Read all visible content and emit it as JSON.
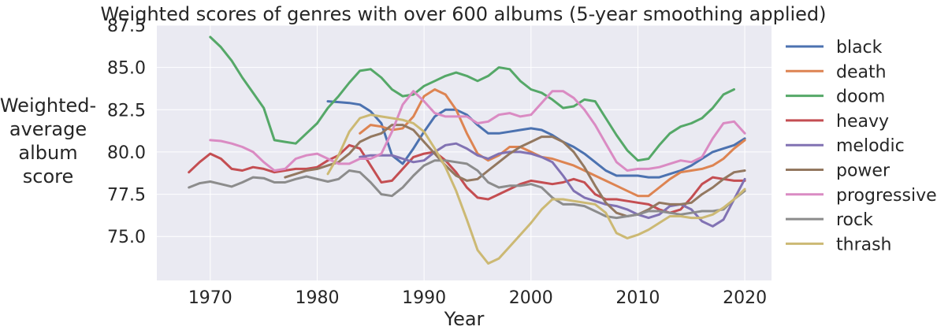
{
  "chart_data": {
    "type": "line",
    "title": "Weighted scores of genres with over 600 albums (5-year smoothing applied)",
    "xlabel": "Year",
    "ylabel": "Weighted-\naverage\nalbum\nscore",
    "xlim": [
      1965,
      2022.5
    ],
    "ylim": [
      72.4,
      87.5
    ],
    "xticks": [
      1970,
      1980,
      1990,
      2000,
      2010,
      2020
    ],
    "yticks": [
      75.0,
      77.5,
      80.0,
      82.5,
      85.0,
      87.5
    ],
    "xtick_labels": [
      "1970",
      "1980",
      "1990",
      "2000",
      "2010",
      "2020"
    ],
    "ytick_labels": [
      "75.0",
      "77.5",
      "80.0",
      "82.5",
      "85.0",
      "87.5"
    ],
    "grid": true,
    "legend_position": "outside-right",
    "series": [
      {
        "name": "black",
        "color": "#4c72b0",
        "x": [
          1981,
          1982,
          1983,
          1984,
          1985,
          1986,
          1987,
          1988,
          1989,
          1990,
          1991,
          1992,
          1993,
          1994,
          1995,
          1996,
          1997,
          1998,
          1999,
          2000,
          2001,
          2002,
          2003,
          2004,
          2005,
          2006,
          2007,
          2008,
          2009,
          2010,
          2011,
          2012,
          2013,
          2014,
          2015,
          2016,
          2017,
          2018,
          2019,
          2020
        ],
        "y": [
          83.0,
          82.95,
          82.9,
          82.8,
          82.4,
          81.7,
          79.8,
          79.3,
          80.2,
          81.2,
          82.1,
          82.5,
          82.5,
          82.2,
          81.6,
          81.1,
          81.1,
          81.2,
          81.3,
          81.4,
          81.3,
          81.0,
          80.6,
          80.3,
          79.9,
          79.4,
          78.9,
          78.6,
          78.6,
          78.6,
          78.5,
          78.5,
          78.7,
          78.9,
          79.2,
          79.6,
          80.0,
          80.2,
          80.4,
          80.8
        ]
      },
      {
        "name": "death",
        "color": "#dd8452",
        "x": [
          1984,
          1985,
          1986,
          1987,
          1988,
          1989,
          1990,
          1991,
          1992,
          1993,
          1994,
          1995,
          1996,
          1997,
          1998,
          1999,
          2000,
          2001,
          2002,
          2003,
          2004,
          2005,
          2006,
          2007,
          2008,
          2009,
          2010,
          2011,
          2012,
          2013,
          2014,
          2015,
          2016,
          2017,
          2018,
          2019,
          2020
        ],
        "y": [
          81.1,
          81.6,
          81.5,
          81.3,
          81.4,
          82.1,
          83.3,
          83.7,
          83.4,
          82.5,
          81.1,
          79.9,
          79.5,
          79.8,
          80.3,
          80.3,
          80.0,
          79.7,
          79.6,
          79.4,
          79.2,
          78.9,
          78.6,
          78.3,
          78.0,
          77.7,
          77.4,
          77.4,
          77.9,
          78.4,
          78.8,
          78.9,
          79.0,
          79.2,
          79.6,
          80.2,
          80.7
        ]
      },
      {
        "name": "doom",
        "color": "#55a868",
        "x": [
          1970,
          1971,
          1972,
          1973,
          1974,
          1975,
          1976,
          1977,
          1978,
          1979,
          1980,
          1981,
          1982,
          1983,
          1984,
          1985,
          1986,
          1987,
          1988,
          1989,
          1990,
          1991,
          1992,
          1993,
          1994,
          1995,
          1996,
          1997,
          1998,
          1999,
          2000,
          2001,
          2002,
          2003,
          2004,
          2005,
          2006,
          2007,
          2008,
          2009,
          2010,
          2011,
          2012,
          2013,
          2014,
          2015,
          2016,
          2017,
          2018,
          2019
        ],
        "y": [
          86.8,
          86.2,
          85.4,
          84.4,
          83.5,
          82.6,
          80.7,
          80.6,
          80.5,
          81.1,
          81.7,
          82.6,
          83.3,
          84.1,
          84.8,
          84.9,
          84.4,
          83.7,
          83.3,
          83.4,
          83.9,
          84.2,
          84.5,
          84.7,
          84.5,
          84.2,
          84.5,
          85.0,
          84.9,
          84.2,
          83.7,
          83.5,
          83.1,
          82.6,
          82.7,
          83.1,
          83.0,
          82.0,
          81.0,
          80.1,
          79.5,
          79.6,
          80.4,
          81.1,
          81.5,
          81.7,
          82.0,
          82.6,
          83.4,
          83.7
        ]
      },
      {
        "name": "heavy",
        "color": "#c44e52",
        "x": [
          1968,
          1969,
          1970,
          1971,
          1972,
          1973,
          1974,
          1975,
          1976,
          1977,
          1978,
          1979,
          1980,
          1981,
          1982,
          1983,
          1984,
          1985,
          1986,
          1987,
          1988,
          1989,
          1990,
          1991,
          1992,
          1993,
          1994,
          1995,
          1996,
          1997,
          1998,
          1999,
          2000,
          2001,
          2002,
          2003,
          2004,
          2005,
          2006,
          2007,
          2008,
          2009,
          2010,
          2011,
          2012,
          2013,
          2014,
          2015,
          2016,
          2017,
          2018,
          2019,
          2020
        ],
        "y": [
          78.8,
          79.4,
          79.9,
          79.6,
          79.0,
          78.9,
          79.1,
          79.0,
          78.8,
          78.9,
          79.0,
          79.0,
          79.1,
          79.5,
          79.8,
          80.4,
          80.2,
          79.2,
          78.2,
          78.3,
          79.0,
          79.7,
          79.9,
          80.0,
          79.5,
          78.8,
          77.9,
          77.3,
          77.2,
          77.5,
          77.8,
          78.1,
          78.3,
          78.2,
          78.1,
          78.2,
          78.4,
          78.2,
          77.5,
          77.2,
          77.2,
          77.1,
          77.0,
          76.9,
          76.6,
          76.4,
          76.6,
          77.3,
          78.1,
          78.5,
          78.4,
          78.3,
          78.3
        ]
      },
      {
        "name": "melodic",
        "color": "#8172b3",
        "x": [
          1984,
          1985,
          1986,
          1987,
          1988,
          1989,
          1990,
          1991,
          1992,
          1993,
          1994,
          1995,
          1996,
          1997,
          1998,
          1999,
          2000,
          2001,
          2002,
          2003,
          2004,
          2005,
          2006,
          2007,
          2008,
          2009,
          2010,
          2011,
          2012,
          2013,
          2014,
          2015,
          2016,
          2017,
          2018,
          2019,
          2020
        ],
        "y": [
          79.7,
          79.8,
          79.8,
          79.8,
          79.6,
          79.4,
          79.5,
          80.0,
          80.4,
          80.5,
          80.2,
          79.8,
          79.6,
          79.9,
          80.0,
          80.0,
          79.9,
          79.7,
          79.4,
          78.6,
          77.7,
          77.3,
          77.1,
          76.9,
          76.8,
          76.6,
          76.3,
          76.1,
          76.3,
          76.8,
          76.9,
          76.6,
          75.9,
          75.6,
          76.0,
          77.2,
          78.4
        ]
      },
      {
        "name": "power",
        "color": "#937860",
        "x": [
          1977,
          1978,
          1979,
          1980,
          1981,
          1982,
          1983,
          1984,
          1985,
          1986,
          1987,
          1988,
          1989,
          1990,
          1991,
          1992,
          1993,
          1994,
          1995,
          1996,
          1997,
          1998,
          1999,
          2000,
          2001,
          2002,
          2003,
          2004,
          2005,
          2006,
          2007,
          2008,
          2009,
          2010,
          2011,
          2012,
          2013,
          2014,
          2015,
          2016,
          2017,
          2018,
          2019,
          2020
        ],
        "y": [
          78.5,
          78.7,
          78.9,
          79.0,
          79.2,
          79.4,
          79.9,
          80.6,
          80.9,
          81.1,
          81.6,
          81.6,
          81.3,
          80.6,
          79.9,
          79.2,
          78.6,
          78.3,
          78.4,
          78.9,
          79.4,
          79.9,
          80.3,
          80.6,
          80.9,
          80.9,
          80.6,
          80.0,
          79.1,
          78.0,
          77.0,
          76.4,
          76.2,
          76.3,
          76.6,
          77.0,
          76.9,
          76.9,
          77.0,
          77.5,
          77.9,
          78.4,
          78.8,
          78.9
        ]
      },
      {
        "name": "progressive",
        "color": "#da8bc3",
        "x": [
          1970,
          1971,
          1972,
          1973,
          1974,
          1975,
          1976,
          1977,
          1978,
          1979,
          1980,
          1981,
          1982,
          1983,
          1984,
          1985,
          1986,
          1987,
          1988,
          1989,
          1990,
          1991,
          1992,
          1993,
          1994,
          1995,
          1996,
          1997,
          1998,
          1999,
          2000,
          2001,
          2002,
          2003,
          2004,
          2005,
          2006,
          2007,
          2008,
          2009,
          2010,
          2011,
          2012,
          2013,
          2014,
          2015,
          2016,
          2017,
          2018,
          2019,
          2020
        ],
        "y": [
          80.7,
          80.65,
          80.5,
          80.3,
          80.0,
          79.4,
          78.9,
          79.0,
          79.6,
          79.8,
          79.9,
          79.6,
          79.3,
          79.3,
          79.6,
          79.6,
          79.9,
          81.2,
          82.8,
          83.6,
          83.0,
          82.3,
          82.1,
          82.1,
          82.1,
          81.7,
          81.8,
          82.2,
          82.3,
          82.1,
          82.2,
          82.9,
          83.6,
          83.6,
          83.2,
          82.5,
          81.6,
          80.5,
          79.4,
          78.9,
          79.0,
          79.0,
          79.1,
          79.3,
          79.5,
          79.4,
          79.7,
          80.8,
          81.7,
          81.8,
          81.1
        ]
      },
      {
        "name": "rock",
        "color": "#8c8c8c",
        "x": [
          1968,
          1969,
          1970,
          1971,
          1972,
          1973,
          1974,
          1975,
          1976,
          1977,
          1978,
          1979,
          1980,
          1981,
          1982,
          1983,
          1984,
          1985,
          1986,
          1987,
          1988,
          1989,
          1990,
          1991,
          1992,
          1993,
          1994,
          1995,
          1996,
          1997,
          1998,
          1999,
          2000,
          2001,
          2002,
          2003,
          2004,
          2005,
          2006,
          2007,
          2008,
          2009,
          2010,
          2011,
          2012,
          2013,
          2014,
          2015,
          2016,
          2017,
          2018,
          2019,
          2020
        ],
        "y": [
          77.9,
          78.15,
          78.25,
          78.1,
          77.95,
          78.2,
          78.5,
          78.45,
          78.2,
          78.2,
          78.4,
          78.55,
          78.4,
          78.25,
          78.4,
          78.9,
          78.8,
          78.2,
          77.5,
          77.4,
          77.9,
          78.6,
          79.2,
          79.5,
          79.5,
          79.4,
          79.3,
          78.9,
          78.2,
          77.9,
          78.0,
          78.0,
          78.1,
          77.9,
          77.3,
          76.9,
          76.9,
          76.8,
          76.5,
          76.2,
          76.1,
          76.2,
          76.3,
          76.5,
          76.5,
          76.4,
          76.3,
          76.4,
          76.5,
          76.5,
          76.6,
          77.2,
          77.7
        ]
      },
      {
        "name": "thrash",
        "color": "#ccb974",
        "x": [
          1981,
          1982,
          1983,
          1984,
          1985,
          1986,
          1987,
          1988,
          1989,
          1990,
          1991,
          1992,
          1993,
          1994,
          1995,
          1996,
          1997,
          1998,
          1999,
          2000,
          2001,
          2002,
          2003,
          2004,
          2005,
          2006,
          2007,
          2008,
          2009,
          2010,
          2011,
          2012,
          2013,
          2014,
          2015,
          2016,
          2017,
          2018,
          2019,
          2020
        ],
        "y": [
          78.7,
          79.8,
          81.2,
          82.0,
          82.2,
          82.1,
          82.0,
          81.9,
          81.7,
          81.2,
          80.2,
          79.1,
          77.7,
          76.0,
          74.2,
          73.4,
          73.7,
          74.4,
          75.1,
          75.8,
          76.6,
          77.2,
          77.2,
          77.1,
          77.0,
          76.9,
          76.4,
          75.2,
          74.9,
          75.1,
          75.4,
          75.8,
          76.2,
          76.2,
          76.1,
          76.1,
          76.3,
          76.7,
          77.2,
          77.8
        ]
      }
    ]
  }
}
